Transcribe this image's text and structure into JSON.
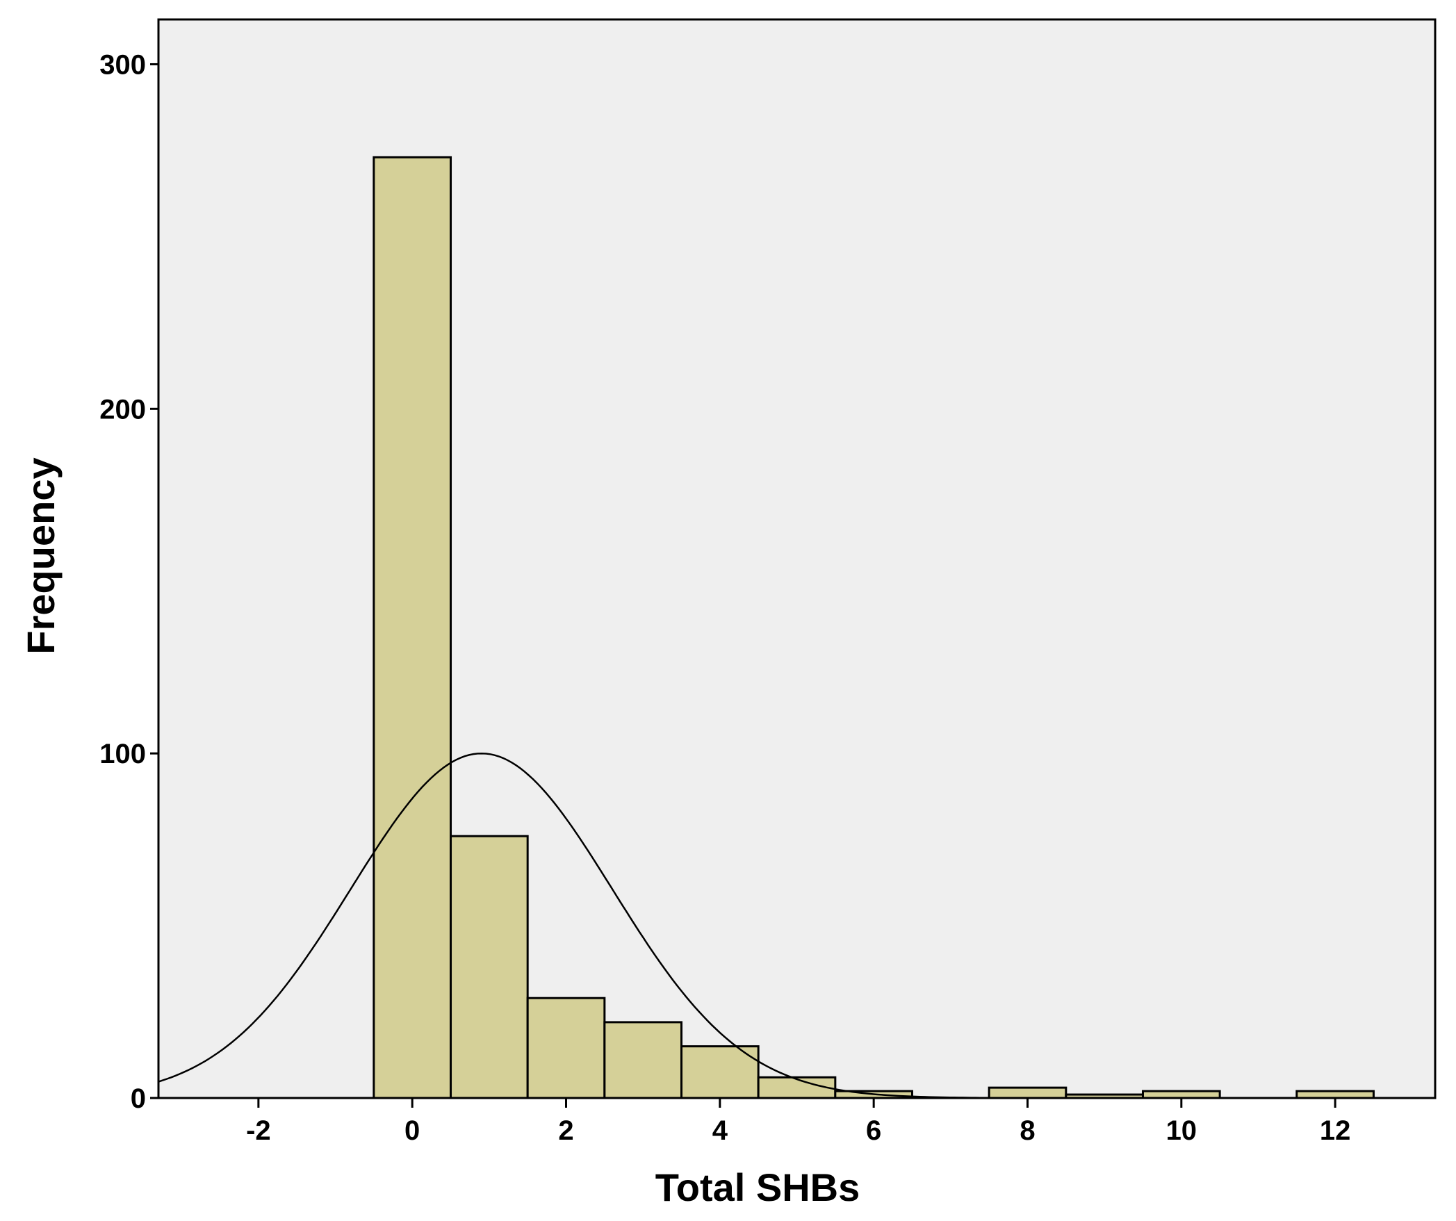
{
  "chart_data": {
    "type": "bar",
    "subtype": "histogram",
    "title": "",
    "xlabel": "Total SHBs",
    "ylabel": "Frequency",
    "xlim": [
      -3.3,
      13.3
    ],
    "ylim": [
      0,
      313
    ],
    "x_ticks": [
      -2,
      0,
      2,
      4,
      6,
      8,
      10,
      12
    ],
    "y_ticks": [
      0,
      100,
      200,
      300
    ],
    "bin_width": 1,
    "bin_centers": [
      0,
      1,
      2,
      3,
      4,
      5,
      6,
      7,
      8,
      9,
      10,
      11,
      12
    ],
    "values": [
      273,
      76,
      29,
      22,
      15,
      6,
      2,
      0,
      3,
      1,
      2,
      0,
      2
    ],
    "normal_curve": {
      "mean": 0.9,
      "sd": 1.7,
      "peak": 100
    },
    "grid": false,
    "legend": "none",
    "colors": {
      "plot_background": "#efefef",
      "bar_fill": "#d5d098",
      "bar_edge": "#000000",
      "curve": "#000000"
    }
  }
}
